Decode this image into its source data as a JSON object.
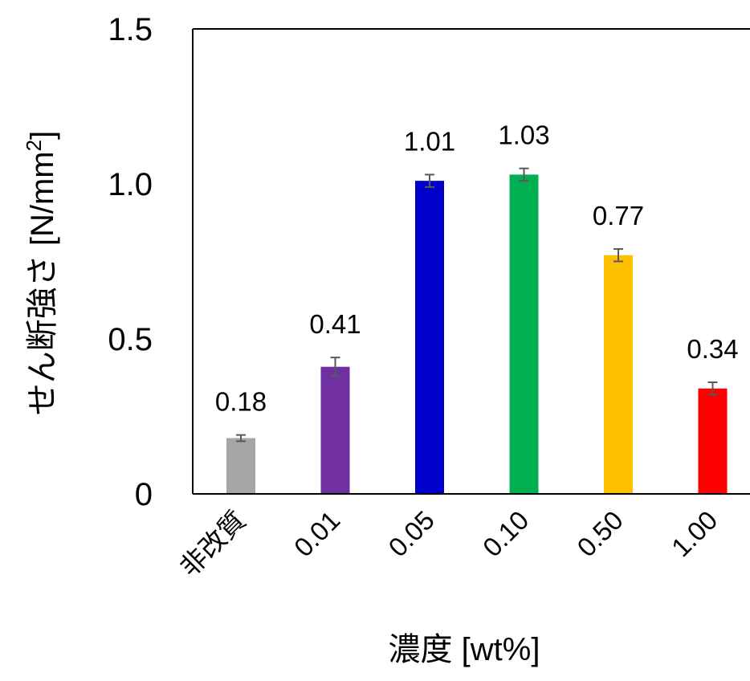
{
  "chart_data": {
    "type": "bar",
    "title": "",
    "xlabel": "濃度 [wt%]",
    "ylabel": "せん断強さ [N/mm",
    "ylabel_superscript": "2",
    "ylabel_suffix": "]",
    "categories": [
      "非改質",
      "0.01",
      "0.05",
      "0.10",
      "0.50",
      "1.00"
    ],
    "values": [
      0.18,
      0.41,
      1.01,
      1.03,
      0.77,
      0.34
    ],
    "value_labels": [
      "0.18",
      "0.41",
      "1.01",
      "1.03",
      "0.77",
      "0.34"
    ],
    "error": [
      0.01,
      0.03,
      0.02,
      0.02,
      0.02,
      0.02
    ],
    "colors": [
      "#A6A6A6",
      "#7030A0",
      "#0000CC",
      "#00B050",
      "#FFC000",
      "#FF0000"
    ],
    "ylim": [
      0,
      1.5
    ],
    "yticks": [
      0,
      0.5,
      1.0,
      1.5
    ],
    "ytick_labels": [
      "0",
      "0.5",
      "1.0",
      "1.5"
    ],
    "grid": false,
    "legend": "none",
    "error_bar_color": "#595959"
  }
}
